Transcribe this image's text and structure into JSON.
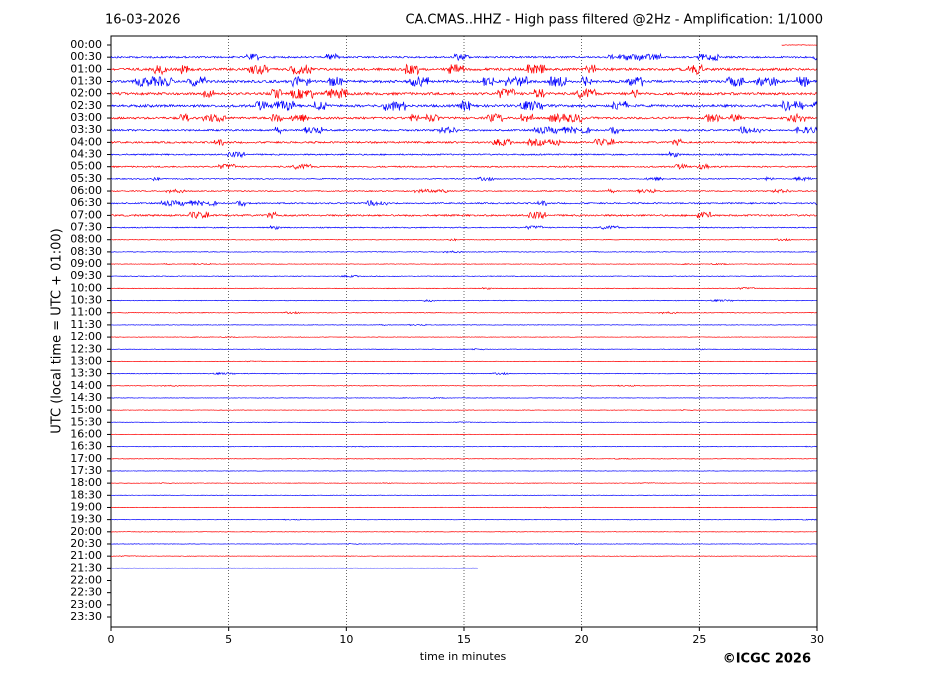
{
  "chart_data": {
    "type": "helicorder",
    "date": "16-03-2026",
    "title": "CA.CMAS..HHZ - High pass filtered @2Hz - Amplification: 1/1000",
    "xlabel": "time in minutes",
    "ylabel": "UTC (local time = UTC + 01:00)",
    "copyright": "©ICGC 2026",
    "xlim": [
      0,
      30
    ],
    "xticks": [
      0,
      5,
      10,
      15,
      20,
      25,
      30
    ],
    "grid": true,
    "colors": [
      "#ff0000",
      "#0000ff"
    ],
    "categories": [
      "00:00",
      "00:30",
      "01:00",
      "01:30",
      "02:00",
      "02:30",
      "03:00",
      "03:30",
      "04:00",
      "04:30",
      "05:00",
      "05:30",
      "06:00",
      "06:30",
      "07:00",
      "07:30",
      "08:00",
      "08:30",
      "09:00",
      "09:30",
      "10:00",
      "10:30",
      "11:00",
      "11:30",
      "12:00",
      "12:30",
      "13:00",
      "13:30",
      "14:00",
      "14:30",
      "15:00",
      "15:30",
      "16:00",
      "16:30",
      "17:00",
      "17:30",
      "18:00",
      "18:30",
      "19:00",
      "19:30",
      "20:00",
      "20:30",
      "21:00",
      "21:30",
      "22:00",
      "22:30",
      "23:00",
      "23:30"
    ],
    "amplitude": [
      0.5,
      2,
      3,
      3,
      3,
      3,
      2.5,
      2,
      2,
      1.5,
      1.5,
      1,
      1,
      1.5,
      2,
      1,
      0.5,
      0.5,
      0.3,
      0.5,
      0.5,
      0.5,
      0.5,
      0.3,
      0.2,
      0.3,
      0.2,
      0.5,
      0.3,
      0.2,
      0.2,
      0.2,
      0.2,
      0.2,
      0.2,
      0.2,
      0.2,
      0.2,
      0.2,
      0.2,
      0.2,
      0.2,
      0.2,
      0.1,
      null,
      null,
      null,
      null
    ],
    "starts": [
      28.5,
      0,
      0,
      0,
      0,
      0,
      0,
      0,
      0,
      0,
      0,
      0,
      0,
      0,
      0,
      0,
      0,
      0,
      0,
      0,
      0,
      0,
      0,
      0,
      0,
      0,
      0,
      0,
      0,
      0,
      0,
      0,
      0,
      0,
      0,
      0,
      0,
      0,
      0,
      0,
      0,
      0,
      0,
      0,
      null,
      null,
      null,
      null
    ],
    "ends": [
      30,
      30,
      30,
      30,
      30,
      30,
      30,
      30,
      30,
      30,
      30,
      30,
      30,
      30,
      30,
      30,
      30,
      30,
      30,
      30,
      30,
      30,
      30,
      30,
      30,
      30,
      30,
      30,
      30,
      30,
      30,
      30,
      30,
      30,
      30,
      30,
      30,
      30,
      30,
      30,
      30,
      30,
      30,
      15.6,
      null,
      null,
      null,
      null
    ]
  }
}
